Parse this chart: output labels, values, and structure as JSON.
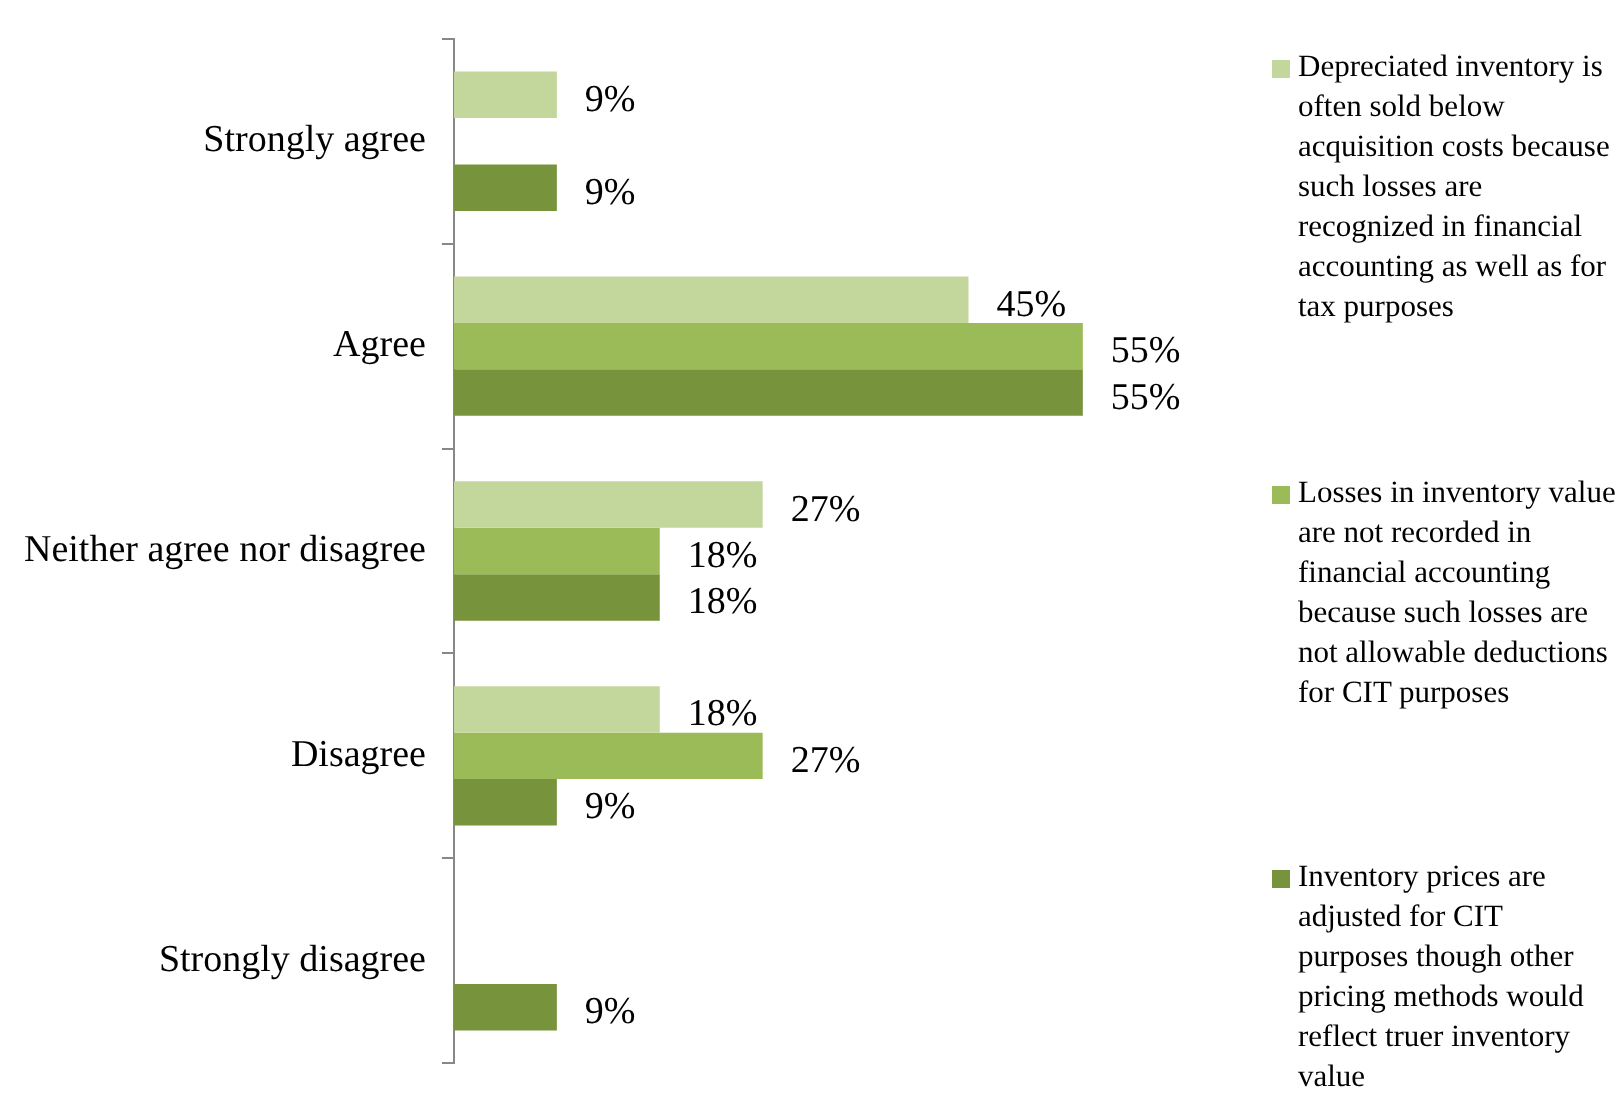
{
  "chart_data": {
    "type": "bar",
    "orientation": "horizontal",
    "legend": "right",
    "categories": [
      "Strongly agree",
      "Agree",
      "Neither agree nor disagree",
      "Disagree",
      "Strongly disagree"
    ],
    "series": [
      {
        "name": "Depreciated inventory is often sold below acquisition costs because such losses are recognized in financial accounting as well as for tax purposes",
        "color": "#c3d69b",
        "values": [
          9,
          45,
          27,
          18,
          null
        ],
        "value_labels": [
          "9%",
          "45%",
          "27%",
          "18%",
          null
        ]
      },
      {
        "name": "Losses in inventory value are not recorded in financial accounting because such losses are not allowable deductions for CIT purposes",
        "color": "#9bbb59",
        "values": [
          null,
          55,
          18,
          27,
          null
        ],
        "value_labels": [
          null,
          "55%",
          "18%",
          "27%",
          null
        ]
      },
      {
        "name": "Inventory prices are adjusted for CIT purposes though other pricing methods would reflect truer inventory value",
        "color": "#77933c",
        "values": [
          9,
          55,
          18,
          9,
          9
        ],
        "value_labels": [
          "9%",
          "55%",
          "18%",
          "9%",
          "9%"
        ]
      }
    ]
  }
}
